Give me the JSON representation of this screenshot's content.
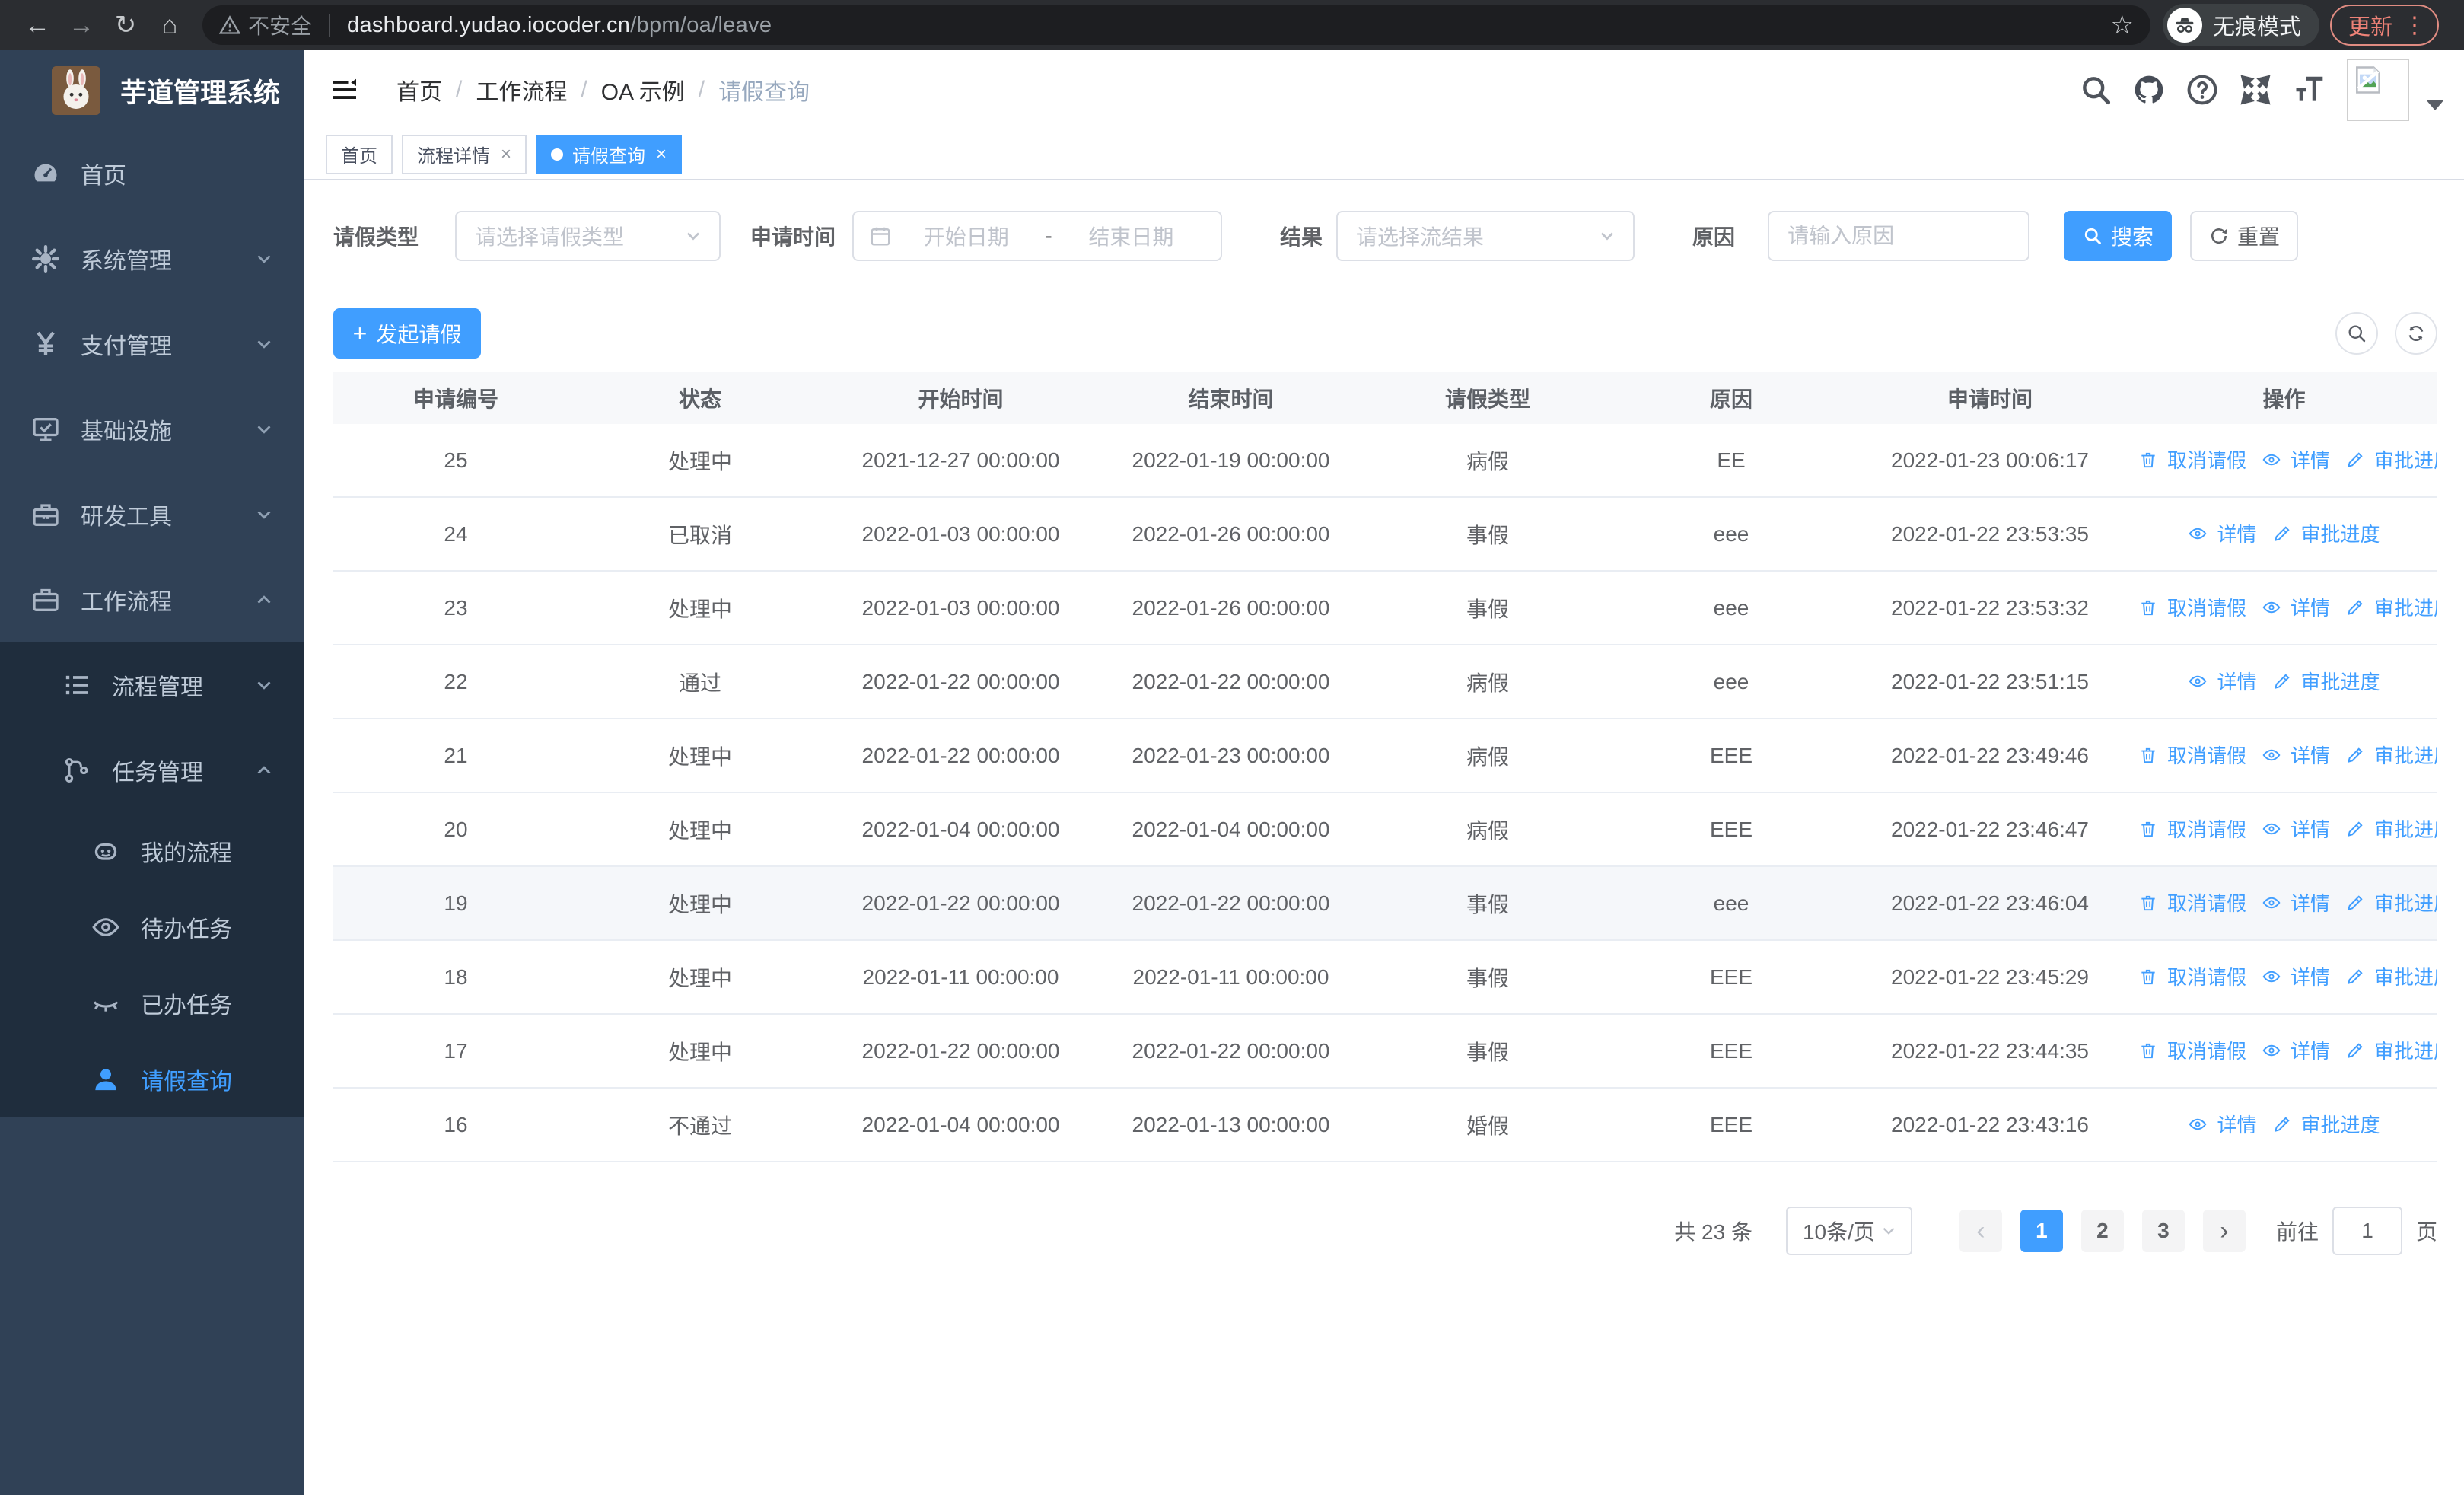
{
  "browser": {
    "security_label": "不安全",
    "url_domain": "dashboard.yudao.iocoder.cn",
    "url_path": "/bpm/oa/leave",
    "incognito_label": "无痕模式",
    "update_label": "更新"
  },
  "sidebar": {
    "app_title": "芋道管理系统",
    "menu": [
      {
        "name": "home",
        "label": "首页",
        "icon": "dashboard-icon",
        "level": 1,
        "chevron": "",
        "dark": false,
        "active": false
      },
      {
        "name": "system",
        "label": "系统管理",
        "icon": "gear-icon",
        "level": 1,
        "chevron": "down",
        "dark": false,
        "active": false
      },
      {
        "name": "payment",
        "label": "支付管理",
        "icon": "yen-icon",
        "level": 1,
        "chevron": "down",
        "dark": false,
        "active": false
      },
      {
        "name": "infrastructure",
        "label": "基础设施",
        "icon": "monitor-icon",
        "level": 1,
        "chevron": "down",
        "dark": false,
        "active": false
      },
      {
        "name": "dev-tools",
        "label": "研发工具",
        "icon": "toolbox-icon",
        "level": 1,
        "chevron": "down",
        "dark": false,
        "active": false
      },
      {
        "name": "workflow",
        "label": "工作流程",
        "icon": "briefcase-icon",
        "level": 1,
        "chevron": "up",
        "dark": false,
        "active": false
      },
      {
        "name": "process-mgmt",
        "label": "流程管理",
        "icon": "list-icon",
        "level": 2,
        "chevron": "down",
        "dark": true,
        "active": false
      },
      {
        "name": "task-mgmt",
        "label": "任务管理",
        "icon": "flow-icon",
        "level": 2,
        "chevron": "up",
        "dark": true,
        "active": false
      },
      {
        "name": "my-process",
        "label": "我的流程",
        "icon": "robot-icon",
        "level": 3,
        "chevron": "",
        "dark": true,
        "active": false
      },
      {
        "name": "todo-tasks",
        "label": "待办任务",
        "icon": "eye-icon",
        "level": 3,
        "chevron": "",
        "dark": true,
        "active": false
      },
      {
        "name": "done-tasks",
        "label": "已办任务",
        "icon": "eye-closed-icon",
        "level": 3,
        "chevron": "",
        "dark": true,
        "active": false
      },
      {
        "name": "leave-query",
        "label": "请假查询",
        "icon": "user-icon",
        "level": 3,
        "chevron": "",
        "dark": true,
        "active": true
      }
    ]
  },
  "breadcrumb": [
    "首页",
    "工作流程",
    "OA 示例",
    "请假查询"
  ],
  "tabs": [
    {
      "name": "home",
      "label": "首页",
      "active": false,
      "closable": false
    },
    {
      "name": "process-detail",
      "label": "流程详情",
      "active": false,
      "closable": true
    },
    {
      "name": "leave-query",
      "label": "请假查询",
      "active": true,
      "closable": true
    }
  ],
  "filters": {
    "type_label": "请假类型",
    "type_placeholder": "请选择请假类型",
    "time_label": "申请时间",
    "start_placeholder": "开始日期",
    "range_separator": "-",
    "end_placeholder": "结束日期",
    "result_label": "结果",
    "result_placeholder": "请选择流结果",
    "reason_label": "原因",
    "reason_placeholder": "请输入原因",
    "search_label": "搜索",
    "reset_label": "重置"
  },
  "toolbar": {
    "create_label": "发起请假"
  },
  "table": {
    "columns": [
      "申请编号",
      "状态",
      "开始时间",
      "结束时间",
      "请假类型",
      "原因",
      "申请时间",
      "操作"
    ],
    "action_labels": {
      "cancel": "取消请假",
      "detail": "详情",
      "progress": "审批进度"
    },
    "rows": [
      {
        "id": "25",
        "status": "处理中",
        "start": "2021-12-27 00:00:00",
        "end": "2022-01-19 00:00:00",
        "type": "病假",
        "reason": "EE",
        "applied": "2022-01-23 00:06:17",
        "actions": [
          "cancel",
          "detail",
          "progress"
        ],
        "highlight": false
      },
      {
        "id": "24",
        "status": "已取消",
        "start": "2022-01-03 00:00:00",
        "end": "2022-01-26 00:00:00",
        "type": "事假",
        "reason": "eee",
        "applied": "2022-01-22 23:53:35",
        "actions": [
          "detail",
          "progress"
        ],
        "highlight": false
      },
      {
        "id": "23",
        "status": "处理中",
        "start": "2022-01-03 00:00:00",
        "end": "2022-01-26 00:00:00",
        "type": "事假",
        "reason": "eee",
        "applied": "2022-01-22 23:53:32",
        "actions": [
          "cancel",
          "detail",
          "progress"
        ],
        "highlight": false
      },
      {
        "id": "22",
        "status": "通过",
        "start": "2022-01-22 00:00:00",
        "end": "2022-01-22 00:00:00",
        "type": "病假",
        "reason": "eee",
        "applied": "2022-01-22 23:51:15",
        "actions": [
          "detail",
          "progress"
        ],
        "highlight": false
      },
      {
        "id": "21",
        "status": "处理中",
        "start": "2022-01-22 00:00:00",
        "end": "2022-01-23 00:00:00",
        "type": "病假",
        "reason": "EEE",
        "applied": "2022-01-22 23:49:46",
        "actions": [
          "cancel",
          "detail",
          "progress"
        ],
        "highlight": false
      },
      {
        "id": "20",
        "status": "处理中",
        "start": "2022-01-04 00:00:00",
        "end": "2022-01-04 00:00:00",
        "type": "病假",
        "reason": "EEE",
        "applied": "2022-01-22 23:46:47",
        "actions": [
          "cancel",
          "detail",
          "progress"
        ],
        "highlight": false
      },
      {
        "id": "19",
        "status": "处理中",
        "start": "2022-01-22 00:00:00",
        "end": "2022-01-22 00:00:00",
        "type": "事假",
        "reason": "eee",
        "applied": "2022-01-22 23:46:04",
        "actions": [
          "cancel",
          "detail",
          "progress"
        ],
        "highlight": true
      },
      {
        "id": "18",
        "status": "处理中",
        "start": "2022-01-11 00:00:00",
        "end": "2022-01-11 00:00:00",
        "type": "事假",
        "reason": "EEE",
        "applied": "2022-01-22 23:45:29",
        "actions": [
          "cancel",
          "detail",
          "progress"
        ],
        "highlight": false
      },
      {
        "id": "17",
        "status": "处理中",
        "start": "2022-01-22 00:00:00",
        "end": "2022-01-22 00:00:00",
        "type": "事假",
        "reason": "EEE",
        "applied": "2022-01-22 23:44:35",
        "actions": [
          "cancel",
          "detail",
          "progress"
        ],
        "highlight": false
      },
      {
        "id": "16",
        "status": "不通过",
        "start": "2022-01-04 00:00:00",
        "end": "2022-01-13 00:00:00",
        "type": "婚假",
        "reason": "EEE",
        "applied": "2022-01-22 23:43:16",
        "actions": [
          "detail",
          "progress"
        ],
        "highlight": false
      }
    ]
  },
  "pagination": {
    "total": "共 23 条",
    "page_size": "10条/页",
    "pages": [
      "1",
      "2",
      "3"
    ],
    "active_page": "1",
    "goto_label": "前往",
    "goto_value": "1",
    "unit_label": "页"
  },
  "colors": {
    "accent": "#409EFF",
    "sidebar_bg": "#304156",
    "submenu_bg": "#1f2d3d"
  }
}
